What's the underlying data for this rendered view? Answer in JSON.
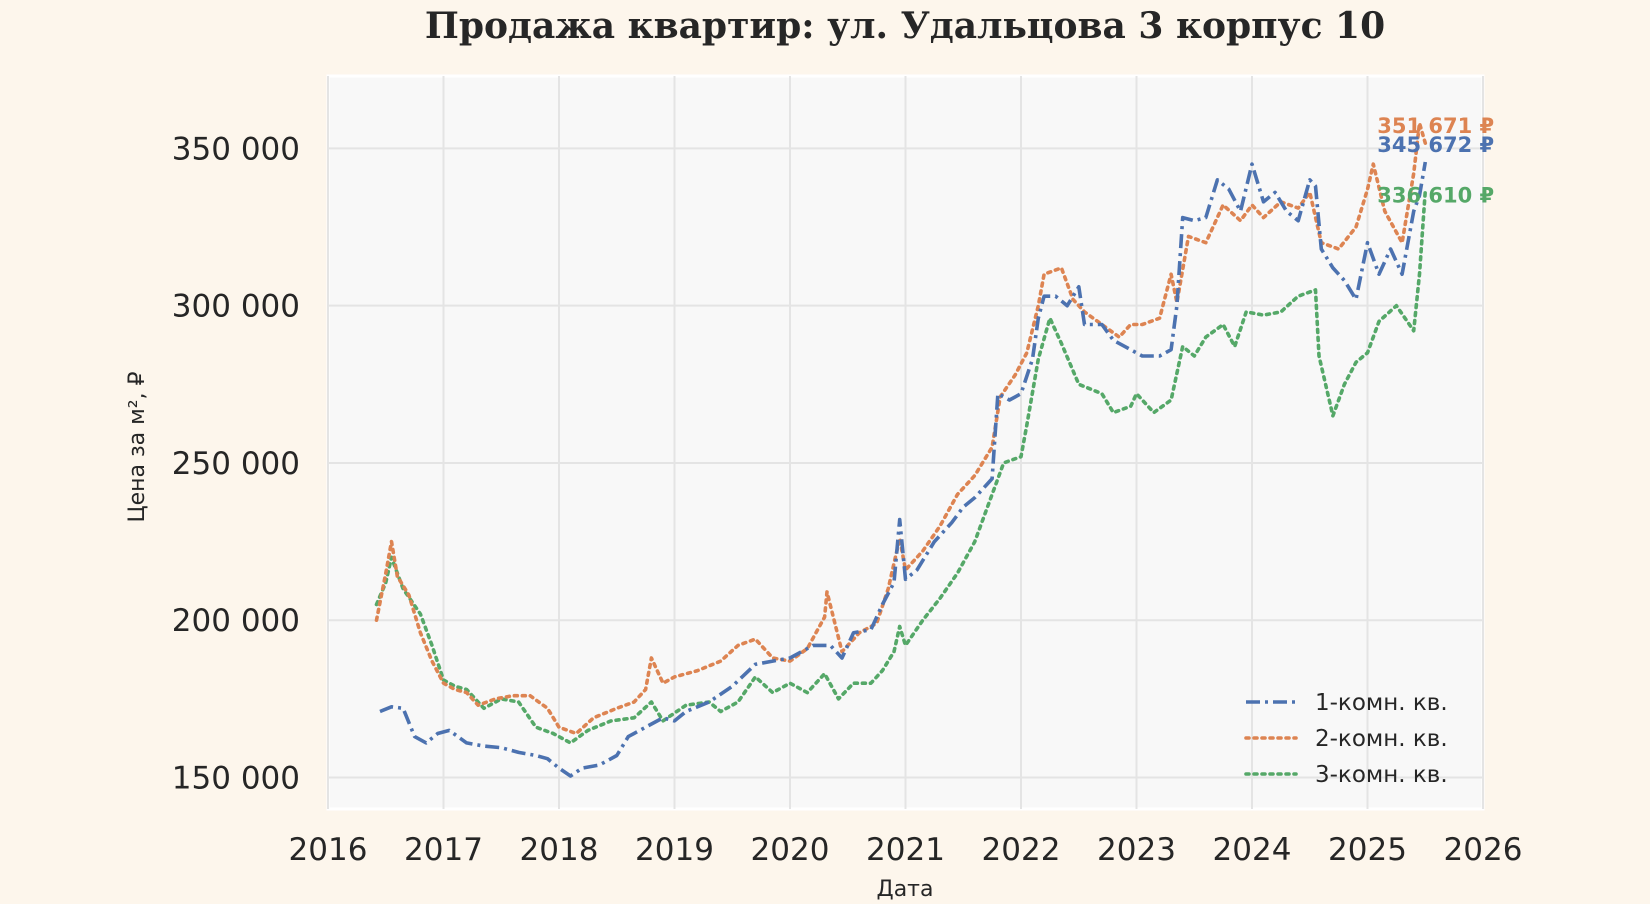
{
  "chart_data": {
    "type": "line",
    "title": "Продажа квартир: ул. Удальцова 3 корпус 10",
    "xlabel": "Дата",
    "ylabel": "Цена за м², ₽",
    "xlim": [
      2016.0,
      2026.0
    ],
    "ylim": [
      140000,
      373000
    ],
    "x_ticks": [
      "2016",
      "2017",
      "2018",
      "2019",
      "2020",
      "2021",
      "2022",
      "2023",
      "2024",
      "2025",
      "2026"
    ],
    "x_tick_values": [
      2016,
      2017,
      2018,
      2019,
      2020,
      2021,
      2022,
      2023,
      2024,
      2025,
      2026
    ],
    "y_ticks": [
      "150 000",
      "200 000",
      "250 000",
      "300 000",
      "350 000"
    ],
    "y_tick_values": [
      150000,
      200000,
      250000,
      300000,
      350000
    ],
    "grid": true,
    "legend_position": "bottom-right",
    "series": [
      {
        "name": "1-комн. кв.",
        "color": "#4c72b0",
        "line_style": "dashdot",
        "end_label": "345 672 ₽",
        "points": [
          [
            2016.45,
            171000
          ],
          [
            2016.55,
            172500
          ],
          [
            2016.65,
            172000
          ],
          [
            2016.75,
            163000
          ],
          [
            2016.85,
            161000
          ],
          [
            2016.95,
            164000
          ],
          [
            2017.05,
            165000
          ],
          [
            2017.2,
            161000
          ],
          [
            2017.35,
            160000
          ],
          [
            2017.5,
            159500
          ],
          [
            2017.65,
            158000
          ],
          [
            2017.8,
            157000
          ],
          [
            2017.9,
            156000
          ],
          [
            2018.0,
            153000
          ],
          [
            2018.1,
            150500
          ],
          [
            2018.2,
            153000
          ],
          [
            2018.35,
            154000
          ],
          [
            2018.5,
            157000
          ],
          [
            2018.6,
            163000
          ],
          [
            2018.75,
            166000
          ],
          [
            2018.9,
            169000
          ],
          [
            2019.0,
            168000
          ],
          [
            2019.1,
            171000
          ],
          [
            2019.3,
            174000
          ],
          [
            2019.5,
            179000
          ],
          [
            2019.7,
            186000
          ],
          [
            2019.85,
            187000
          ],
          [
            2020.0,
            188000
          ],
          [
            2020.2,
            192000
          ],
          [
            2020.35,
            192000
          ],
          [
            2020.45,
            188000
          ],
          [
            2020.55,
            196000
          ],
          [
            2020.7,
            197000
          ],
          [
            2020.8,
            205000
          ],
          [
            2020.9,
            212000
          ],
          [
            2020.95,
            232000
          ],
          [
            2021.0,
            213000
          ],
          [
            2021.1,
            216000
          ],
          [
            2021.25,
            225000
          ],
          [
            2021.4,
            231000
          ],
          [
            2021.5,
            236000
          ],
          [
            2021.6,
            239000
          ],
          [
            2021.7,
            243000
          ],
          [
            2021.75,
            245000
          ],
          [
            2021.8,
            272000
          ],
          [
            2021.9,
            270000
          ],
          [
            2022.0,
            272000
          ],
          [
            2022.1,
            283000
          ],
          [
            2022.15,
            296000
          ],
          [
            2022.2,
            303000
          ],
          [
            2022.3,
            303000
          ],
          [
            2022.4,
            300000
          ],
          [
            2022.5,
            306000
          ],
          [
            2022.55,
            294000
          ],
          [
            2022.7,
            294000
          ],
          [
            2022.8,
            289000
          ],
          [
            2022.95,
            286000
          ],
          [
            2023.05,
            284000
          ],
          [
            2023.2,
            284000
          ],
          [
            2023.3,
            286000
          ],
          [
            2023.35,
            300000
          ],
          [
            2023.4,
            328000
          ],
          [
            2023.5,
            327000
          ],
          [
            2023.6,
            328000
          ],
          [
            2023.7,
            340000
          ],
          [
            2023.8,
            337000
          ],
          [
            2023.9,
            330000
          ],
          [
            2024.0,
            345000
          ],
          [
            2024.1,
            333000
          ],
          [
            2024.2,
            336000
          ],
          [
            2024.3,
            330000
          ],
          [
            2024.4,
            327000
          ],
          [
            2024.5,
            340000
          ],
          [
            2024.55,
            338000
          ],
          [
            2024.6,
            318000
          ],
          [
            2024.7,
            312000
          ],
          [
            2024.8,
            308000
          ],
          [
            2024.9,
            302000
          ],
          [
            2025.0,
            320000
          ],
          [
            2025.1,
            310000
          ],
          [
            2025.2,
            318000
          ],
          [
            2025.3,
            310000
          ],
          [
            2025.4,
            330000
          ],
          [
            2025.45,
            335000
          ],
          [
            2025.5,
            345672
          ]
        ]
      },
      {
        "name": "2-комн. кв.",
        "color": "#dd8452",
        "line_style": "dotted",
        "end_label": "351 671 ₽",
        "points": [
          [
            2016.42,
            200000
          ],
          [
            2016.5,
            215000
          ],
          [
            2016.55,
            225000
          ],
          [
            2016.6,
            214000
          ],
          [
            2016.7,
            208000
          ],
          [
            2016.8,
            196000
          ],
          [
            2016.9,
            187000
          ],
          [
            2017.0,
            180000
          ],
          [
            2017.1,
            178000
          ],
          [
            2017.2,
            177000
          ],
          [
            2017.3,
            173000
          ],
          [
            2017.45,
            175000
          ],
          [
            2017.6,
            176000
          ],
          [
            2017.75,
            176000
          ],
          [
            2017.9,
            172000
          ],
          [
            2018.0,
            166000
          ],
          [
            2018.15,
            164000
          ],
          [
            2018.3,
            169000
          ],
          [
            2018.5,
            172000
          ],
          [
            2018.65,
            174000
          ],
          [
            2018.75,
            178000
          ],
          [
            2018.8,
            188000
          ],
          [
            2018.9,
            180000
          ],
          [
            2019.0,
            182000
          ],
          [
            2019.2,
            184000
          ],
          [
            2019.4,
            187000
          ],
          [
            2019.55,
            192000
          ],
          [
            2019.7,
            194000
          ],
          [
            2019.85,
            188000
          ],
          [
            2020.0,
            187000
          ],
          [
            2020.15,
            191000
          ],
          [
            2020.3,
            201000
          ],
          [
            2020.32,
            209000
          ],
          [
            2020.45,
            190000
          ],
          [
            2020.6,
            196000
          ],
          [
            2020.75,
            199000
          ],
          [
            2020.85,
            210000
          ],
          [
            2020.95,
            226000
          ],
          [
            2021.0,
            216000
          ],
          [
            2021.15,
            222000
          ],
          [
            2021.3,
            230000
          ],
          [
            2021.45,
            240000
          ],
          [
            2021.6,
            246000
          ],
          [
            2021.75,
            255000
          ],
          [
            2021.82,
            271000
          ],
          [
            2021.95,
            278000
          ],
          [
            2022.05,
            285000
          ],
          [
            2022.15,
            300000
          ],
          [
            2022.2,
            310000
          ],
          [
            2022.35,
            312000
          ],
          [
            2022.45,
            302000
          ],
          [
            2022.55,
            298000
          ],
          [
            2022.7,
            294000
          ],
          [
            2022.85,
            290000
          ],
          [
            2022.95,
            294000
          ],
          [
            2023.05,
            294000
          ],
          [
            2023.2,
            296000
          ],
          [
            2023.3,
            310000
          ],
          [
            2023.35,
            301000
          ],
          [
            2023.45,
            322000
          ],
          [
            2023.6,
            320000
          ],
          [
            2023.75,
            332000
          ],
          [
            2023.9,
            327000
          ],
          [
            2024.0,
            332000
          ],
          [
            2024.1,
            328000
          ],
          [
            2024.25,
            333000
          ],
          [
            2024.4,
            331000
          ],
          [
            2024.5,
            336000
          ],
          [
            2024.6,
            320000
          ],
          [
            2024.75,
            318000
          ],
          [
            2024.9,
            325000
          ],
          [
            2025.0,
            337000
          ],
          [
            2025.05,
            345000
          ],
          [
            2025.15,
            330000
          ],
          [
            2025.3,
            320000
          ],
          [
            2025.4,
            342000
          ],
          [
            2025.45,
            358000
          ],
          [
            2025.5,
            351671
          ]
        ]
      },
      {
        "name": "3-комн. кв.",
        "color": "#55a868",
        "line_style": "dotted",
        "end_label": "336 610 ₽",
        "points": [
          [
            2016.42,
            205000
          ],
          [
            2016.5,
            212000
          ],
          [
            2016.55,
            220000
          ],
          [
            2016.65,
            210000
          ],
          [
            2016.8,
            202000
          ],
          [
            2016.9,
            192000
          ],
          [
            2017.0,
            181000
          ],
          [
            2017.1,
            179000
          ],
          [
            2017.2,
            178000
          ],
          [
            2017.35,
            172000
          ],
          [
            2017.5,
            175000
          ],
          [
            2017.65,
            174000
          ],
          [
            2017.8,
            166000
          ],
          [
            2017.95,
            164000
          ],
          [
            2018.1,
            161000
          ],
          [
            2018.25,
            165000
          ],
          [
            2018.45,
            168000
          ],
          [
            2018.65,
            169000
          ],
          [
            2018.8,
            174000
          ],
          [
            2018.9,
            168000
          ],
          [
            2019.1,
            173000
          ],
          [
            2019.3,
            174000
          ],
          [
            2019.4,
            171000
          ],
          [
            2019.55,
            174000
          ],
          [
            2019.7,
            182000
          ],
          [
            2019.85,
            177000
          ],
          [
            2020.0,
            180000
          ],
          [
            2020.15,
            177000
          ],
          [
            2020.3,
            183000
          ],
          [
            2020.42,
            175000
          ],
          [
            2020.55,
            180000
          ],
          [
            2020.7,
            180000
          ],
          [
            2020.8,
            184000
          ],
          [
            2020.9,
            190000
          ],
          [
            2020.95,
            198000
          ],
          [
            2021.0,
            192000
          ],
          [
            2021.15,
            200000
          ],
          [
            2021.3,
            207000
          ],
          [
            2021.45,
            215000
          ],
          [
            2021.6,
            225000
          ],
          [
            2021.75,
            240000
          ],
          [
            2021.85,
            250000
          ],
          [
            2022.0,
            252000
          ],
          [
            2022.05,
            262000
          ],
          [
            2022.15,
            283000
          ],
          [
            2022.25,
            296000
          ],
          [
            2022.35,
            288000
          ],
          [
            2022.5,
            275000
          ],
          [
            2022.7,
            272000
          ],
          [
            2022.8,
            266000
          ],
          [
            2022.95,
            268000
          ],
          [
            2023.0,
            272000
          ],
          [
            2023.15,
            266000
          ],
          [
            2023.3,
            270000
          ],
          [
            2023.4,
            287000
          ],
          [
            2023.5,
            284000
          ],
          [
            2023.6,
            290000
          ],
          [
            2023.75,
            294000
          ],
          [
            2023.85,
            287000
          ],
          [
            2023.95,
            298000
          ],
          [
            2024.1,
            297000
          ],
          [
            2024.25,
            298000
          ],
          [
            2024.4,
            303000
          ],
          [
            2024.55,
            305000
          ],
          [
            2024.58,
            284000
          ],
          [
            2024.7,
            265000
          ],
          [
            2024.8,
            275000
          ],
          [
            2024.9,
            282000
          ],
          [
            2025.0,
            285000
          ],
          [
            2025.1,
            295000
          ],
          [
            2025.25,
            300000
          ],
          [
            2025.4,
            292000
          ],
          [
            2025.45,
            310000
          ],
          [
            2025.5,
            336610
          ]
        ]
      }
    ]
  }
}
